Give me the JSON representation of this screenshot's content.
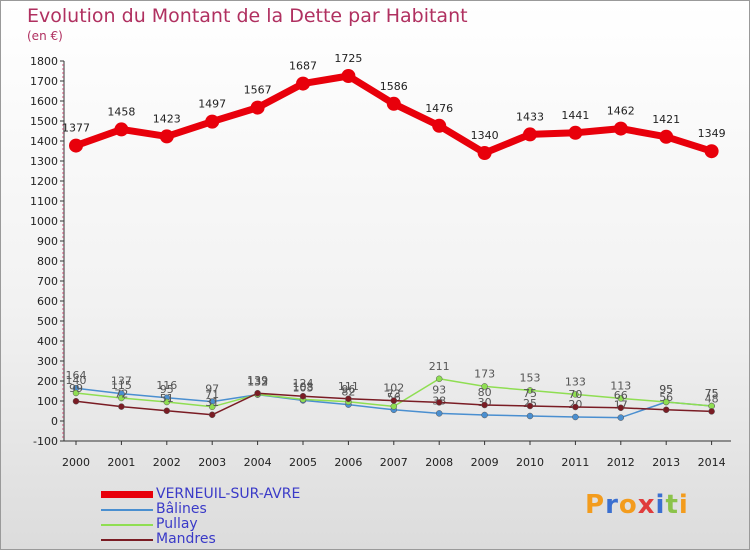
{
  "header": {
    "title": "Evolution du Montant de la Dette par Habitant",
    "unit": "(en €)"
  },
  "logo": {
    "text": "Proxiti",
    "letters": [
      {
        "ch": "P",
        "color": "#f39c1d"
      },
      {
        "ch": "r",
        "color": "#3a6fd0"
      },
      {
        "ch": "o",
        "color": "#f39c1d"
      },
      {
        "ch": "x",
        "color": "#e03c3c"
      },
      {
        "ch": "i",
        "color": "#3a6fd0"
      },
      {
        "ch": "t",
        "color": "#8bc34a"
      },
      {
        "ch": "i",
        "color": "#f39c1d"
      }
    ]
  },
  "chart_data": {
    "type": "line",
    "title": "Evolution du Montant de la Dette par Habitant",
    "ylabel": "(en €)",
    "xlabel": "",
    "x": [
      "2000",
      "2001",
      "2002",
      "2003",
      "2004",
      "2005",
      "2006",
      "2007",
      "2008",
      "2009",
      "2010",
      "2011",
      "2012",
      "2013",
      "2014"
    ],
    "ylim": [
      -100,
      1800
    ],
    "yticks": [
      -100,
      0,
      100,
      200,
      300,
      400,
      500,
      600,
      700,
      800,
      900,
      1000,
      1100,
      1200,
      1300,
      1400,
      1500,
      1600,
      1700,
      1800
    ],
    "grid": false,
    "legend": "bottom-left",
    "series": [
      {
        "name": "VERNEUIL-SUR-AVRE",
        "color": "#e8000b",
        "width": 7,
        "marker": 7,
        "values": [
          1377,
          1458,
          1423,
          1497,
          1567,
          1687,
          1725,
          1586,
          1476,
          1340,
          1433,
          1441,
          1462,
          1421,
          1349
        ]
      },
      {
        "name": "Bâlines",
        "color": "#4a8fd0",
        "width": 1.5,
        "marker": 3,
        "values": [
          164,
          137,
          116,
          97,
          132,
          103,
          82,
          56,
          38,
          30,
          25,
          20,
          17,
          95,
          75
        ]
      },
      {
        "name": "Pullay",
        "color": "#8fde52",
        "width": 1.5,
        "marker": 3,
        "values": [
          140,
          115,
          95,
          71,
          133,
          108,
          96,
          73,
          211,
          173,
          153,
          133,
          113,
          95,
          75
        ]
      },
      {
        "name": "Mandres",
        "color": "#7a1c24",
        "width": 1.5,
        "marker": 3,
        "values": [
          99,
          72,
          51,
          31,
          139,
          124,
          111,
          102,
          93,
          80,
          75,
          70,
          66,
          56,
          48
        ]
      }
    ]
  }
}
